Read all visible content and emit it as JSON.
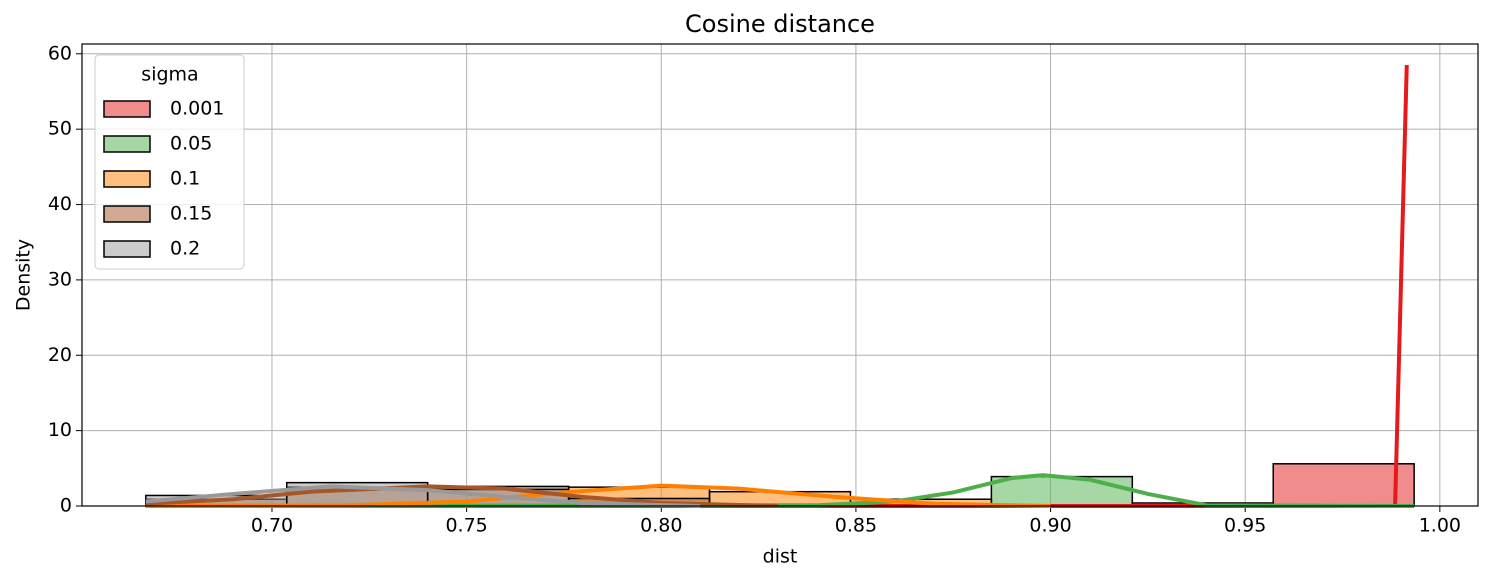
{
  "chart_data": {
    "type": "histogram",
    "title": "Cosine distance",
    "xlabel": "dist",
    "ylabel": "Density",
    "bins": [
      0.6676,
      0.7038,
      0.74,
      0.7762,
      0.8124,
      0.8486,
      0.8848,
      0.921,
      0.9572,
      0.9934
    ],
    "series": [
      {
        "name": "0.001",
        "color": "#e41a1c",
        "values": [
          0,
          0,
          0,
          0,
          0,
          0,
          0,
          0,
          5.6
        ],
        "kde": {
          "x": [
            0.6676,
            0.985,
            0.9885,
            0.9915
          ],
          "y": [
            0,
            0,
            0,
            58.5
          ]
        }
      },
      {
        "name": "0.05",
        "color": "#4daf4a",
        "values": [
          0,
          0,
          0,
          0,
          0,
          0,
          3.9,
          0.4,
          0
        ],
        "kde": {
          "x": [
            0.6676,
            0.84,
            0.86,
            0.875,
            0.89,
            0.898,
            0.91,
            0.925,
            0.94,
            0.9934
          ],
          "y": [
            0,
            0.1,
            0.6,
            1.8,
            3.7,
            4.1,
            3.5,
            1.6,
            0.1,
            0
          ]
        }
      },
      {
        "name": "0.1",
        "color": "#ff7f00",
        "values": [
          0,
          0,
          0,
          2.5,
          1.9,
          0.9,
          0,
          0,
          0
        ],
        "kde": {
          "x": [
            0.6676,
            0.72,
            0.75,
            0.775,
            0.8,
            0.82,
            0.845,
            0.87,
            0.9
          ],
          "y": [
            0,
            0.1,
            0.6,
            1.8,
            2.7,
            2.3,
            1.2,
            0.3,
            0
          ]
        }
      },
      {
        "name": "0.15",
        "color": "#a65628",
        "values": [
          0.9,
          2.5,
          2.6,
          1.0,
          0,
          0,
          0,
          0,
          0
        ],
        "kde": {
          "x": [
            0.6676,
            0.69,
            0.71,
            0.74,
            0.76,
            0.78,
            0.8,
            0.83
          ],
          "y": [
            0.3,
            0.9,
            1.9,
            2.6,
            2.3,
            1.2,
            0.4,
            0
          ]
        }
      },
      {
        "name": "0.2",
        "color": "#999999",
        "values": [
          1.4,
          3.1,
          2.2,
          0,
          0,
          0,
          0,
          0,
          0
        ],
        "kde": {
          "x": [
            0.6676,
            0.69,
            0.715,
            0.74,
            0.76,
            0.78,
            0.81
          ],
          "y": [
            0.6,
            1.6,
            2.6,
            2.1,
            1.2,
            0.4,
            0
          ]
        }
      }
    ],
    "legend_title": "sigma",
    "legend": "upper left",
    "grid": true,
    "xlim": [
      0.6512,
      1.0098
    ],
    "ylim": [
      0,
      61.3
    ],
    "xticks": [
      {
        "value": 0.7,
        "label": "0.70"
      },
      {
        "value": 0.75,
        "label": "0.75"
      },
      {
        "value": 0.8,
        "label": "0.80"
      },
      {
        "value": 0.85,
        "label": "0.85"
      },
      {
        "value": 0.9,
        "label": "0.90"
      },
      {
        "value": 0.95,
        "label": "0.95"
      },
      {
        "value": 1.0,
        "label": "1.00"
      }
    ],
    "yticks": [
      0,
      10,
      20,
      30,
      40,
      50,
      60
    ]
  }
}
